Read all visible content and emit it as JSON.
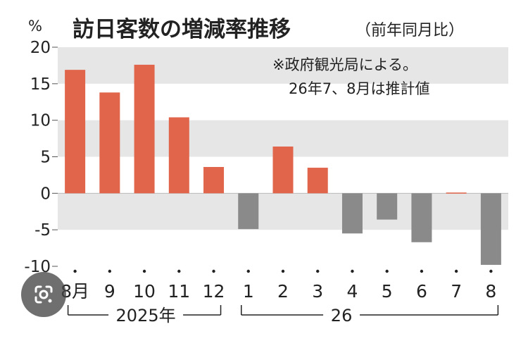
{
  "chart_data": {
    "type": "bar",
    "title": "訪日客数の増減率推移",
    "subtitle": "（前年同月比）",
    "ylabel": "%",
    "ylim": [
      -10,
      20
    ],
    "yticks": [
      "20",
      "15",
      "10",
      "5",
      "0",
      "-5",
      "-10"
    ],
    "categories": [
      "8月",
      "9",
      "10",
      "11",
      "12",
      "1",
      "2",
      "3",
      "4",
      "5",
      "6",
      "7",
      "8"
    ],
    "values": [
      16.9,
      13.8,
      17.6,
      10.4,
      3.6,
      -4.9,
      6.4,
      3.5,
      -5.5,
      -3.6,
      -6.7,
      0.1,
      -9.8
    ],
    "year_groups": [
      {
        "label": "2025年",
        "start": 0,
        "end": 4
      },
      {
        "label": "26",
        "start": 5,
        "end": 12
      }
    ],
    "annotations": [
      "※政府観光局による。",
      "26年7、8月は推計値"
    ],
    "colors": {
      "positive": "#e0654b",
      "negative": "#8a8a8a",
      "band": "#e6e6e6"
    }
  }
}
